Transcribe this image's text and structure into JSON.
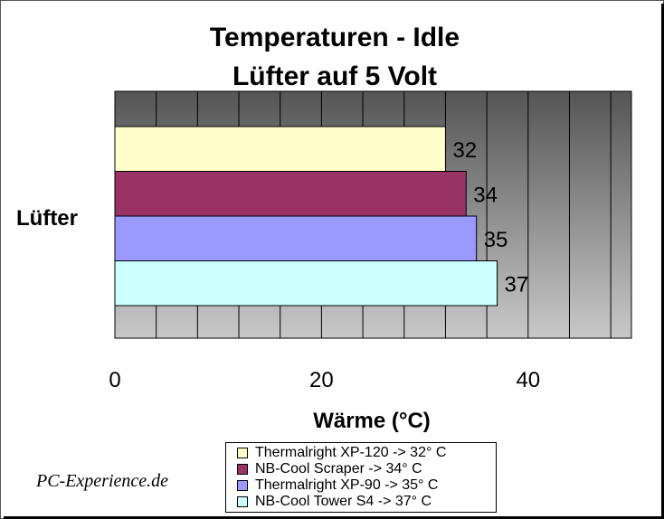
{
  "chart_data": {
    "type": "bar",
    "orientation": "horizontal",
    "title_line1": "Temperaturen - Idle",
    "title_line2": "Lüfter auf 5 Volt",
    "category_label": "Lüfter",
    "xlabel": "Wärme (°C)",
    "xlim": [
      0,
      50
    ],
    "x_ticks": [
      "0",
      "20",
      "40"
    ],
    "grid": true,
    "legend_position": "bottom",
    "series": [
      {
        "name": "Thermalright XP-120 -> 32° C",
        "value": 32,
        "label": "32",
        "color": "#FFFFCC"
      },
      {
        "name": "NB-Cool Scraper -> 34° C",
        "value": 34,
        "label": "34",
        "color": "#993366"
      },
      {
        "name": "Thermalright XP-90 -> 35° C",
        "value": 35,
        "label": "35",
        "color": "#9999FF"
      },
      {
        "name": "NB-Cool Tower S4 -> 37° C",
        "value": 37,
        "label": "37",
        "color": "#CCFFFF"
      }
    ]
  },
  "watermark": "PC-Experience.de"
}
